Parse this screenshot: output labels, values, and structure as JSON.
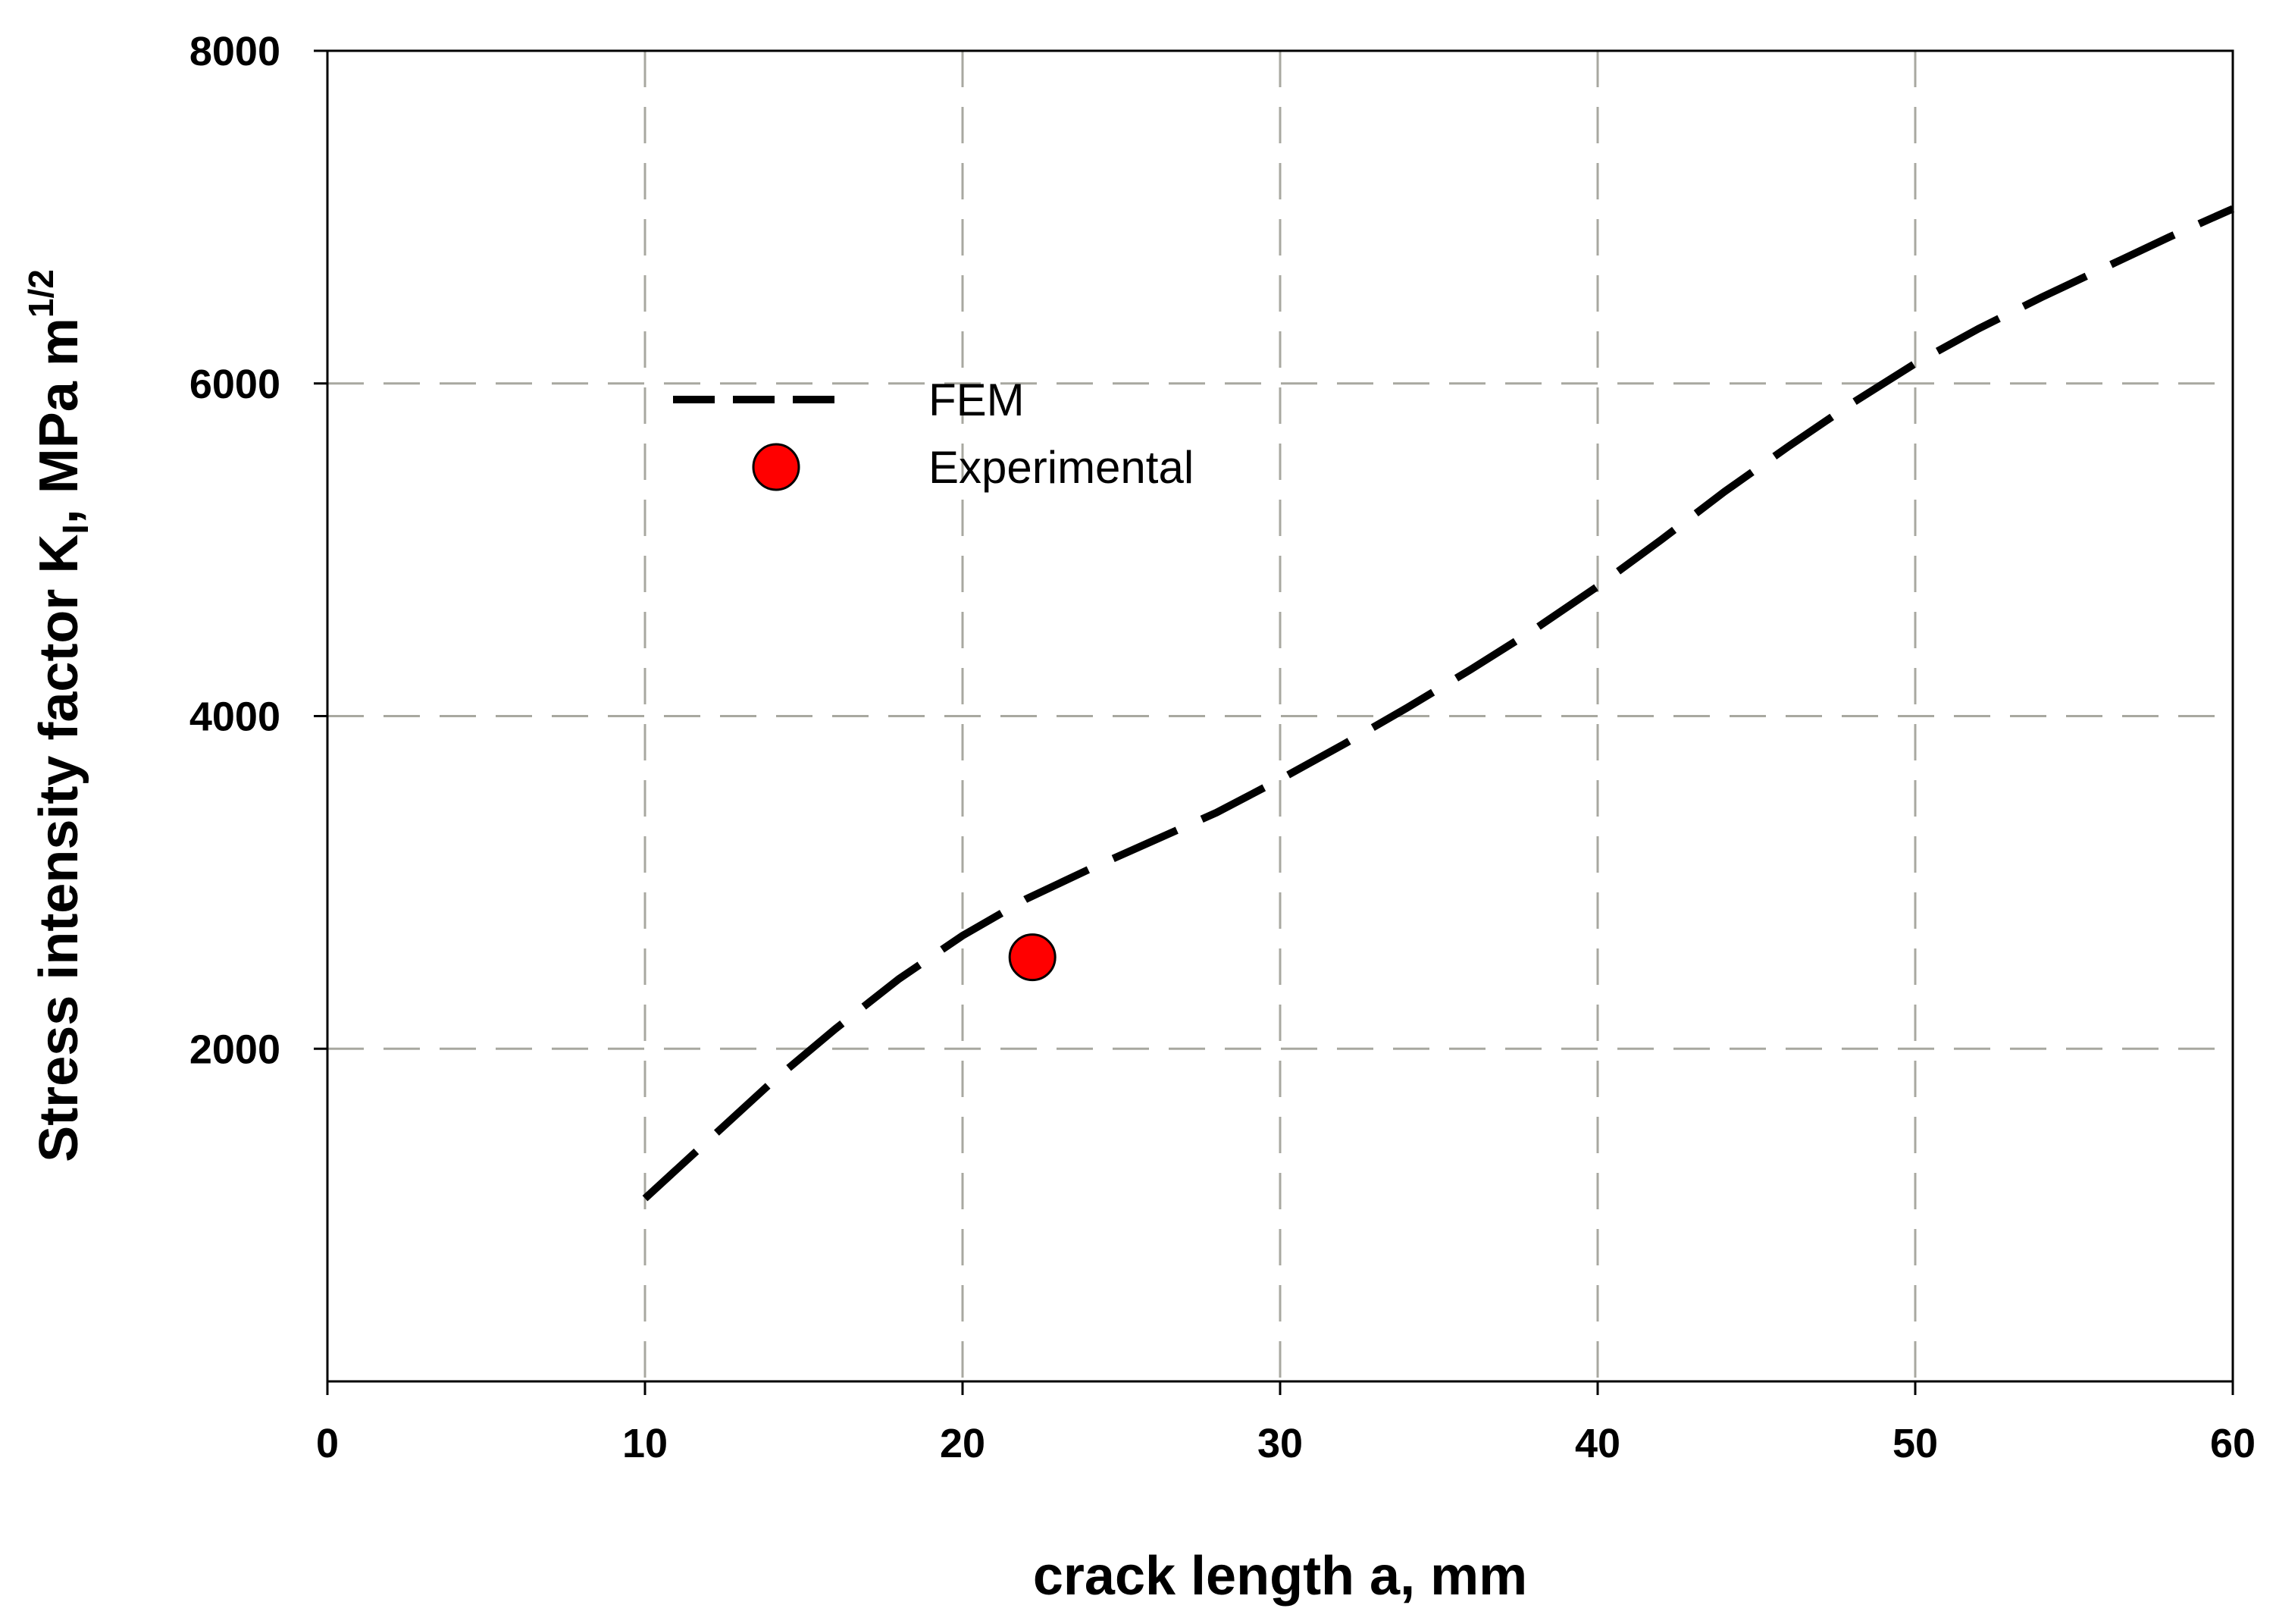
{
  "chart_data": {
    "type": "line",
    "title": "",
    "xlabel": "crack length a, mm",
    "ylabel": {
      "main": "Stress intensity factor K",
      "sub": "I",
      "unit": ", MPa m",
      "sup": "1/2"
    },
    "xlim": [
      0,
      60
    ],
    "ylim": [
      0,
      8000
    ],
    "x_ticks": [
      0,
      10,
      20,
      30,
      40,
      50,
      60
    ],
    "x_tick_labels": [
      "0",
      "10",
      "20",
      "30",
      "40",
      "50",
      "60"
    ],
    "y_ticks": [
      2000,
      4000,
      6000,
      8000
    ],
    "y_tick_labels": [
      "2000",
      "4000",
      "6000",
      "8000"
    ],
    "grid": true,
    "legend_position": "upper-left",
    "series": [
      {
        "name": "FEM",
        "style": "dashed",
        "color": "#000000",
        "x": [
          10,
          12,
          14,
          16,
          18,
          20,
          22,
          24,
          26,
          28,
          30,
          32,
          34,
          36,
          38,
          40,
          42,
          44,
          46,
          48,
          50,
          52,
          54,
          56,
          58,
          60
        ],
        "y": [
          1100,
          1450,
          1800,
          2120,
          2420,
          2680,
          2900,
          3080,
          3250,
          3420,
          3620,
          3830,
          4050,
          4280,
          4520,
          4780,
          5060,
          5350,
          5620,
          5880,
          6120,
          6330,
          6520,
          6700,
          6880,
          7050
        ]
      },
      {
        "name": "Experimental",
        "style": "marker",
        "marker": "circle",
        "color": "#ff0000",
        "x": [
          22.2
        ],
        "y": [
          2550
        ]
      }
    ]
  }
}
